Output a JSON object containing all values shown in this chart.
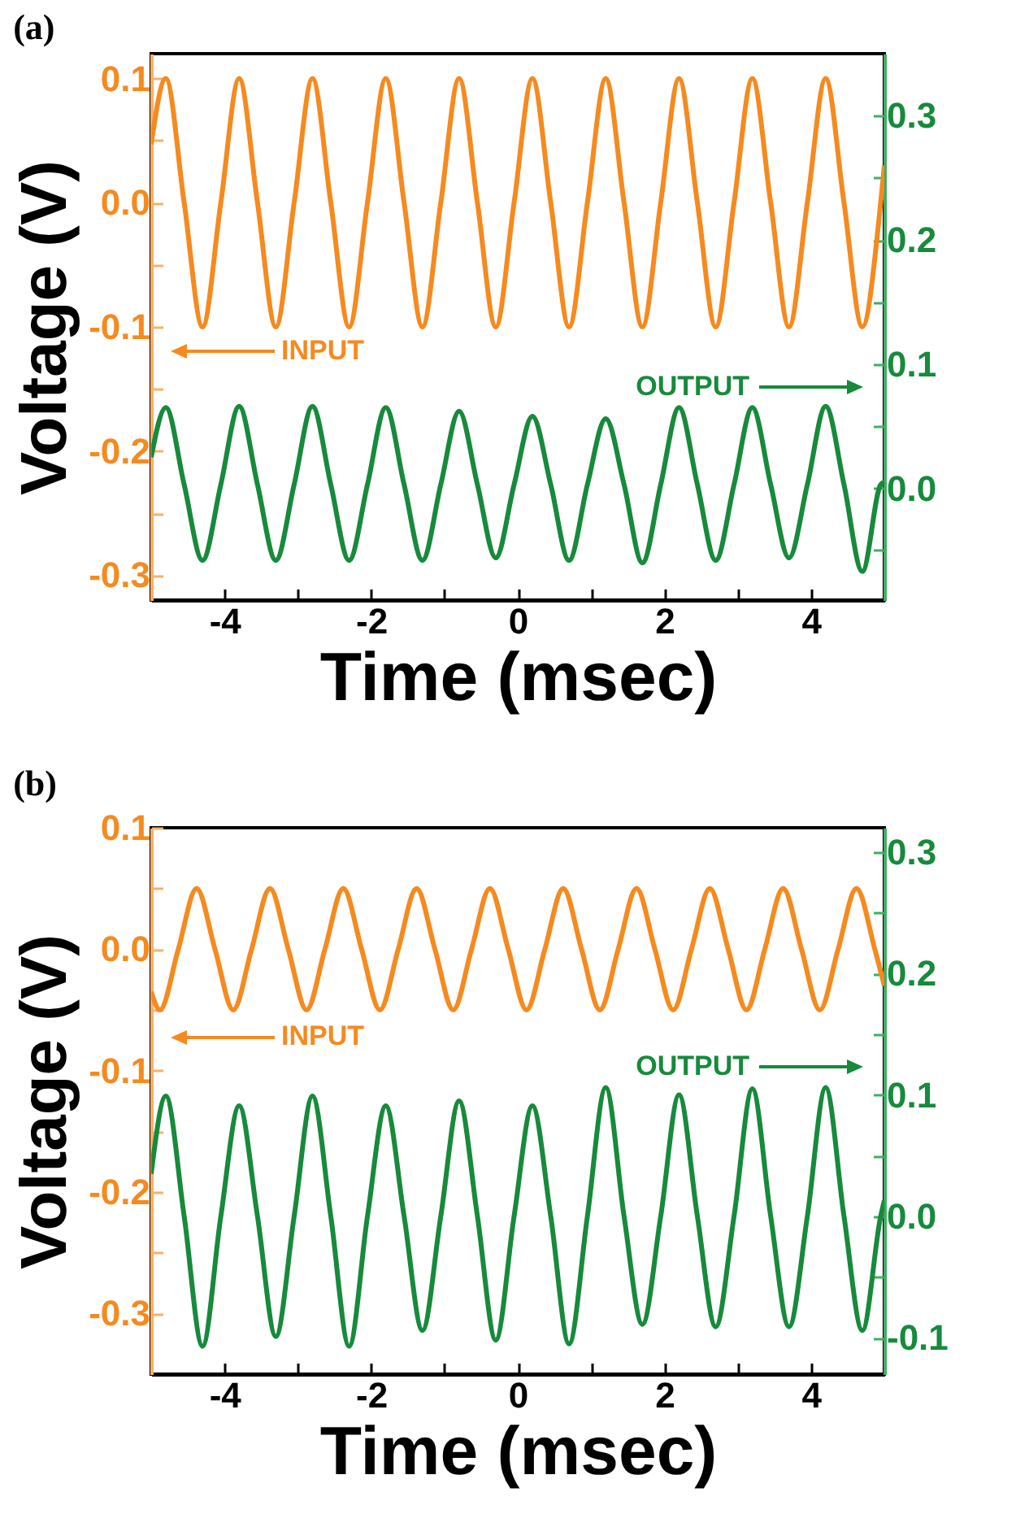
{
  "chart_data": [
    {
      "type": "line",
      "title": "(a)",
      "xlabel": "Time (msec)",
      "ylabel": "Voltage (V)",
      "annotations": [
        "INPUT",
        "OUTPUT"
      ],
      "x": [
        -5,
        -4.8,
        -4.55,
        -4.3,
        -4.05,
        -3.8,
        -3.55,
        -3.3,
        -3.05,
        -2.8,
        -2.55,
        -2.3,
        -2.05,
        -1.8,
        -1.55,
        -1.3,
        -1.05,
        -0.8,
        -0.55,
        -0.3,
        -0.05,
        0.2,
        0.45,
        0.7,
        0.95,
        1.2,
        1.45,
        1.7,
        1.95,
        2.2,
        2.45,
        2.7,
        2.95,
        3.2,
        3.45,
        3.7,
        3.95,
        4.2,
        4.45,
        4.7,
        4.95,
        5
      ],
      "xlim": [
        -5,
        5
      ],
      "xticks": [
        -4,
        {
          "value": -3,
          "label": null
        },
        -2,
        {
          "value": -1,
          "label": null
        },
        {
          "value": 0,
          "label": "0"
        },
        {
          "value": 1,
          "label": null
        },
        2,
        {
          "value": 3,
          "label": null
        },
        4
      ],
      "ylim": [
        -0.32,
        0.12
      ],
      "yticks": [
        -0.3,
        {
          "value": -0.25,
          "label": null
        },
        -0.2,
        {
          "value": -0.15,
          "label": null
        },
        -0.1,
        {
          "value": -0.05,
          "label": null
        },
        {
          "value": 0,
          "label": "0.0"
        },
        {
          "value": 0.05,
          "label": null
        },
        0.1
      ],
      "y2lim": [
        -0.09,
        0.35
      ],
      "y2ticks": [
        {
          "value": -0.05,
          "label": null
        },
        {
          "value": 0,
          "label": "0.0"
        },
        {
          "value": 0.05,
          "label": null
        },
        0.1,
        {
          "value": 0.15,
          "label": null
        },
        0.2,
        {
          "value": 0.25,
          "label": null
        },
        0.3
      ],
      "series": [
        {
          "color": "#f58a1f",
          "values": [
            0.047,
            0.1,
            0,
            -0.1,
            0,
            0.1,
            0,
            -0.1,
            0,
            0.1,
            0,
            -0.1,
            0,
            0.1,
            0,
            -0.1,
            0,
            0.1,
            0,
            -0.1,
            0,
            0.1,
            0,
            -0.1,
            0,
            0.1,
            0,
            -0.1,
            0,
            0.1,
            0,
            -0.1,
            0,
            0.1,
            0,
            -0.1,
            0,
            0.1,
            0,
            -0.1,
            0,
            0.03
          ]
        },
        {
          "color": "#178a3c",
          "axis": "y2",
          "values": [
            0.025,
            0.065,
            0.003,
            -0.058,
            0.003,
            0.066,
            0.003,
            -0.058,
            0.003,
            0.066,
            0.003,
            -0.058,
            0.003,
            0.065,
            0.003,
            -0.058,
            0.003,
            0.062,
            0.003,
            -0.056,
            0.003,
            0.058,
            0.003,
            -0.058,
            0.003,
            0.056,
            0.003,
            -0.06,
            0.003,
            0.065,
            0.003,
            -0.058,
            0.003,
            0.065,
            0.003,
            -0.056,
            0.003,
            0.066,
            0.003,
            -0.067,
            0.003,
            0.005
          ]
        }
      ]
    },
    {
      "type": "line",
      "title": "(b)",
      "xlabel": "Time (msec)",
      "ylabel": "Voltage (V)",
      "annotations": [
        "INPUT",
        "OUTPUT"
      ],
      "xlim": [
        -5,
        5
      ],
      "xticks": [
        -4,
        {
          "value": -3,
          "label": null
        },
        -2,
        {
          "value": -1,
          "label": null
        },
        {
          "value": 0,
          "label": "0"
        },
        {
          "value": 1,
          "label": null
        },
        2,
        {
          "value": 3,
          "label": null
        },
        4
      ],
      "ylim": [
        -0.35,
        0.1
      ],
      "yticks": [
        -0.3,
        {
          "value": -0.25,
          "label": null
        },
        -0.2,
        {
          "value": -0.15,
          "label": null
        },
        -0.1,
        {
          "value": -0.05,
          "label": null
        },
        {
          "value": 0,
          "label": "0.0"
        },
        {
          "value": 0.05,
          "label": null
        },
        0.1
      ],
      "y2lim": [
        -0.13,
        0.32
      ],
      "y2ticks": [
        -0.1,
        {
          "value": -0.05,
          "label": null
        },
        {
          "value": 0,
          "label": "0.0"
        },
        {
          "value": 0.05,
          "label": null
        },
        0.1,
        {
          "value": 0.15,
          "label": null
        },
        0.2,
        {
          "value": 0.25,
          "label": null
        },
        0.3
      ],
      "series": [
        {
          "color": "#f58a1f",
          "x": [
            -5,
            -4.88,
            -4.63,
            -4.38,
            -4.13,
            -3.88,
            -3.63,
            -3.38,
            -3.13,
            -2.88,
            -2.63,
            -2.38,
            -2.13,
            -1.88,
            -1.63,
            -1.38,
            -1.13,
            -0.88,
            -0.63,
            -0.38,
            -0.13,
            0.12,
            0.37,
            0.62,
            0.87,
            1.12,
            1.37,
            1.62,
            1.87,
            2.12,
            2.37,
            2.62,
            2.87,
            3.12,
            3.37,
            3.62,
            3.87,
            4.12,
            4.37,
            4.62,
            4.87,
            5
          ],
          "values": [
            -0.035,
            -0.05,
            0,
            0.05,
            0,
            -0.05,
            0,
            0.05,
            0,
            -0.05,
            0,
            0.05,
            0,
            -0.05,
            0,
            0.05,
            0,
            -0.05,
            0,
            0.05,
            0,
            -0.05,
            0,
            0.05,
            0,
            -0.05,
            0,
            0.05,
            0,
            -0.05,
            0,
            0.05,
            0,
            -0.05,
            0,
            0.05,
            0,
            -0.05,
            0,
            0.05,
            0,
            -0.03
          ]
        },
        {
          "color": "#178a3c",
          "axis": "y2",
          "x": [
            -5,
            -4.8,
            -4.55,
            -4.3,
            -4.05,
            -3.8,
            -3.55,
            -3.3,
            -3.05,
            -2.8,
            -2.55,
            -2.3,
            -2.05,
            -1.8,
            -1.55,
            -1.3,
            -1.05,
            -0.8,
            -0.55,
            -0.3,
            -0.05,
            0.2,
            0.45,
            0.7,
            0.95,
            1.2,
            1.45,
            1.7,
            1.95,
            2.2,
            2.45,
            2.7,
            2.95,
            3.2,
            3.45,
            3.7,
            3.95,
            4.2,
            4.45,
            4.7,
            4.95,
            5
          ],
          "values": [
            0.035,
            0.099,
            0,
            -0.107,
            0,
            0.091,
            0,
            -0.099,
            0,
            0.099,
            0,
            -0.107,
            0,
            0.091,
            0,
            -0.094,
            0,
            0.095,
            0,
            -0.102,
            0,
            0.091,
            0,
            -0.105,
            0,
            0.106,
            0,
            -0.089,
            0,
            0.1,
            0,
            -0.091,
            0,
            0.105,
            0,
            -0.091,
            0,
            0.106,
            0,
            -0.094,
            0,
            0.013
          ]
        }
      ]
    }
  ]
}
